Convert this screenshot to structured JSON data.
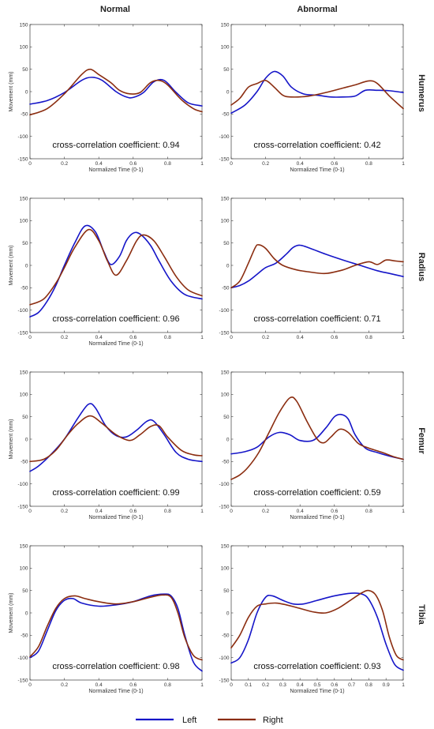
{
  "columns": [
    "Normal",
    "Abnormal"
  ],
  "rows": [
    "Humerus",
    "Radius",
    "Femur",
    "Tibia"
  ],
  "colors": {
    "left": "#1515c8",
    "right": "#8b2d10"
  },
  "legend": [
    {
      "name": "Left",
      "key": "left"
    },
    {
      "name": "Right",
      "key": "right"
    }
  ],
  "chart_data": [
    {
      "type": "line",
      "row": "Humerus",
      "column": "Normal",
      "xlabel": "Normalized Time (0-1)",
      "ylabel": "Movement (mm)",
      "xlim": [
        0,
        1
      ],
      "ylim": [
        -150,
        150
      ],
      "xticks": [
        "0",
        "0.2",
        "0.4",
        "0.6",
        "0.8",
        "1"
      ],
      "yticks": [
        "150",
        "100",
        "50",
        "0",
        "-50",
        "-100",
        "-150"
      ],
      "annotation": "cross-correlation coefficient:  0.94",
      "series": [
        {
          "name": "Left",
          "key": "left",
          "x": [
            0,
            0.1,
            0.2,
            0.3,
            0.36,
            0.42,
            0.5,
            0.56,
            0.6,
            0.66,
            0.72,
            0.78,
            0.85,
            0.92,
            1
          ],
          "y": [
            -28,
            -20,
            -2,
            25,
            32,
            25,
            0,
            -12,
            -13,
            -2,
            22,
            25,
            -2,
            -25,
            -32
          ]
        },
        {
          "name": "Right",
          "key": "right",
          "x": [
            0,
            0.1,
            0.2,
            0.3,
            0.35,
            0.4,
            0.47,
            0.52,
            0.58,
            0.64,
            0.7,
            0.75,
            0.8,
            0.88,
            0.95,
            1
          ],
          "y": [
            -52,
            -38,
            -5,
            38,
            50,
            38,
            20,
            3,
            -5,
            -2,
            20,
            25,
            15,
            -18,
            -38,
            -45
          ]
        }
      ]
    },
    {
      "type": "line",
      "row": "Humerus",
      "column": "Abnormal",
      "xlabel": "Normalized Time (0-1)",
      "ylabel": "",
      "xlim": [
        0,
        1
      ],
      "ylim": [
        -150,
        150
      ],
      "xticks": [
        "0",
        "0.2",
        "0.4",
        "0.6",
        "0.8",
        "1"
      ],
      "yticks": [
        "150",
        "100",
        "50",
        "0",
        "-50",
        "-100",
        "-150"
      ],
      "annotation": "cross-correlation coefficient:  0.42",
      "series": [
        {
          "name": "Left",
          "key": "left",
          "x": [
            0,
            0.08,
            0.15,
            0.2,
            0.25,
            0.3,
            0.35,
            0.42,
            0.5,
            0.58,
            0.65,
            0.72,
            0.78,
            0.85,
            0.92,
            1
          ],
          "y": [
            -48,
            -30,
            0,
            30,
            45,
            35,
            10,
            -5,
            -8,
            -12,
            -12,
            -10,
            3,
            3,
            2,
            -2
          ]
        },
        {
          "name": "Right",
          "key": "right",
          "x": [
            0,
            0.05,
            0.1,
            0.15,
            0.2,
            0.25,
            0.3,
            0.35,
            0.45,
            0.55,
            0.65,
            0.72,
            0.8,
            0.85,
            0.92,
            1
          ],
          "y": [
            -30,
            -15,
            10,
            18,
            25,
            10,
            -8,
            -12,
            -10,
            -2,
            8,
            15,
            24,
            18,
            -10,
            -38
          ]
        }
      ]
    },
    {
      "type": "line",
      "row": "Radius",
      "column": "Normal",
      "xlabel": "Normalized Time (0-1)",
      "ylabel": "Movement (mm)",
      "xlim": [
        0,
        1
      ],
      "ylim": [
        -150,
        150
      ],
      "xticks": [
        "0",
        "0.2",
        "0.4",
        "0.6",
        "0.8",
        "1"
      ],
      "yticks": [
        "150",
        "100",
        "50",
        "0",
        "-50",
        "-100",
        "-150"
      ],
      "annotation": "cross-correlation coefficient:  0.96",
      "series": [
        {
          "name": "Left",
          "key": "left",
          "x": [
            0,
            0.05,
            0.1,
            0.15,
            0.2,
            0.26,
            0.32,
            0.38,
            0.43,
            0.47,
            0.52,
            0.56,
            0.6,
            0.64,
            0.7,
            0.75,
            0.82,
            0.9,
            1
          ],
          "y": [
            -115,
            -105,
            -80,
            -45,
            0,
            50,
            88,
            75,
            30,
            2,
            20,
            55,
            72,
            70,
            45,
            10,
            -35,
            -65,
            -75
          ]
        },
        {
          "name": "Right",
          "key": "right",
          "x": [
            0,
            0.08,
            0.15,
            0.2,
            0.26,
            0.34,
            0.4,
            0.45,
            0.5,
            0.56,
            0.62,
            0.66,
            0.72,
            0.78,
            0.85,
            0.92,
            1
          ],
          "y": [
            -88,
            -75,
            -40,
            -5,
            40,
            80,
            55,
            10,
            -22,
            10,
            55,
            68,
            55,
            20,
            -25,
            -55,
            -68
          ]
        }
      ]
    },
    {
      "type": "line",
      "row": "Radius",
      "column": "Abnormal",
      "xlabel": "",
      "ylabel": "",
      "xlim": [
        0,
        1
      ],
      "ylim": [
        -150,
        150
      ],
      "xticks": [
        "0",
        "0.2",
        "0.4",
        "0.6",
        "0.8",
        "1"
      ],
      "yticks": [
        "150",
        "100",
        "50",
        "0",
        "-50",
        "-100",
        "-150"
      ],
      "annotation": "cross-correlation coefficient:  0.71",
      "series": [
        {
          "name": "Left",
          "key": "left",
          "x": [
            0,
            0.05,
            0.1,
            0.15,
            0.2,
            0.26,
            0.32,
            0.36,
            0.4,
            0.46,
            0.55,
            0.65,
            0.75,
            0.85,
            0.92,
            1
          ],
          "y": [
            -50,
            -45,
            -35,
            -20,
            -5,
            5,
            25,
            40,
            45,
            38,
            25,
            12,
            0,
            -12,
            -18,
            -25
          ]
        },
        {
          "name": "Right",
          "key": "right",
          "x": [
            0,
            0.05,
            0.1,
            0.14,
            0.16,
            0.2,
            0.25,
            0.3,
            0.38,
            0.46,
            0.55,
            0.65,
            0.72,
            0.8,
            0.85,
            0.9,
            0.95,
            1
          ],
          "y": [
            -50,
            -35,
            5,
            40,
            46,
            38,
            15,
            0,
            -10,
            -15,
            -18,
            -10,
            0,
            8,
            2,
            12,
            10,
            8
          ]
        }
      ]
    },
    {
      "type": "line",
      "row": "Femur",
      "column": "Normal",
      "xlabel": "Normalized Time (0-1)",
      "ylabel": "Movement (mm)",
      "xlim": [
        0,
        1
      ],
      "ylim": [
        -150,
        150
      ],
      "xticks": [
        "0",
        "0.2",
        "0.4",
        "0.6",
        "0.8",
        "1"
      ],
      "yticks": [
        "150",
        "100",
        "50",
        "0",
        "-50",
        "-100",
        "-150"
      ],
      "annotation": "cross-correlation coefficient:  0.99",
      "series": [
        {
          "name": "Left",
          "key": "left",
          "x": [
            0,
            0.05,
            0.12,
            0.2,
            0.28,
            0.34,
            0.38,
            0.44,
            0.5,
            0.56,
            0.62,
            0.68,
            0.72,
            0.78,
            0.85,
            0.92,
            1
          ],
          "y": [
            -72,
            -60,
            -35,
            0,
            48,
            78,
            70,
            30,
            8,
            5,
            20,
            40,
            40,
            10,
            -30,
            -45,
            -50
          ]
        },
        {
          "name": "Right",
          "key": "right",
          "x": [
            0,
            0.08,
            0.15,
            0.22,
            0.28,
            0.35,
            0.42,
            0.5,
            0.58,
            0.64,
            0.7,
            0.75,
            0.8,
            0.88,
            0.95,
            1
          ],
          "y": [
            -50,
            -45,
            -25,
            10,
            35,
            52,
            35,
            10,
            -3,
            10,
            28,
            30,
            5,
            -25,
            -35,
            -37
          ]
        }
      ]
    },
    {
      "type": "line",
      "row": "Femur",
      "column": "Abnormal",
      "xlabel": "Normalized Time (0-1)",
      "ylabel": "",
      "xlim": [
        0,
        1
      ],
      "ylim": [
        -150,
        150
      ],
      "xticks": [
        "0",
        "0.2",
        "0.4",
        "0.6",
        "0.8",
        "1"
      ],
      "yticks": [
        "150",
        "100",
        "50",
        "0",
        "-50",
        "-100",
        "-150"
      ],
      "annotation": "cross-correlation coefficient:  0.59",
      "series": [
        {
          "name": "Left",
          "key": "left",
          "x": [
            0,
            0.08,
            0.15,
            0.22,
            0.28,
            0.34,
            0.4,
            0.48,
            0.55,
            0.6,
            0.64,
            0.68,
            0.72,
            0.78,
            0.85,
            0.92,
            1
          ],
          "y": [
            -33,
            -28,
            -18,
            5,
            15,
            10,
            -3,
            -2,
            25,
            50,
            55,
            45,
            10,
            -20,
            -30,
            -38,
            -45
          ]
        },
        {
          "name": "Right",
          "key": "right",
          "x": [
            0,
            0.05,
            0.1,
            0.16,
            0.22,
            0.28,
            0.34,
            0.38,
            0.44,
            0.5,
            0.54,
            0.58,
            0.63,
            0.68,
            0.74,
            0.8,
            0.88,
            0.95,
            1
          ],
          "y": [
            -90,
            -80,
            -62,
            -30,
            15,
            60,
            92,
            85,
            40,
            0,
            -8,
            5,
            22,
            15,
            -10,
            -20,
            -30,
            -40,
            -45
          ]
        }
      ]
    },
    {
      "type": "line",
      "row": "Tibia",
      "column": "Normal",
      "xlabel": "Normalized Time (0-1)",
      "ylabel": "Movement (mm)",
      "xlim": [
        0,
        1
      ],
      "ylim": [
        -150,
        150
      ],
      "xticks": [
        "0",
        "0.2",
        "0.4",
        "0.6",
        "0.8",
        "1"
      ],
      "yticks": [
        "150",
        "100",
        "50",
        "0",
        "-50",
        "-100",
        "-150"
      ],
      "annotation": "cross-correlation coefficient:  0.98",
      "series": [
        {
          "name": "Left",
          "key": "left",
          "x": [
            0,
            0.05,
            0.1,
            0.15,
            0.2,
            0.25,
            0.3,
            0.4,
            0.5,
            0.6,
            0.7,
            0.78,
            0.82,
            0.86,
            0.9,
            0.95,
            1
          ],
          "y": [
            -100,
            -85,
            -40,
            5,
            28,
            32,
            22,
            15,
            18,
            25,
            38,
            42,
            38,
            10,
            -50,
            -110,
            -130
          ]
        },
        {
          "name": "Right",
          "key": "right",
          "x": [
            0,
            0.05,
            0.1,
            0.15,
            0.2,
            0.26,
            0.32,
            0.4,
            0.5,
            0.6,
            0.7,
            0.77,
            0.82,
            0.86,
            0.9,
            0.95,
            1
          ],
          "y": [
            -98,
            -75,
            -30,
            10,
            32,
            38,
            32,
            25,
            20,
            25,
            35,
            40,
            35,
            0,
            -55,
            -95,
            -105
          ]
        }
      ]
    },
    {
      "type": "line",
      "row": "Tibia",
      "column": "Abnormal",
      "xlabel": "Normalized Time (0-1)",
      "ylabel": "",
      "xlim": [
        0,
        1
      ],
      "ylim": [
        -150,
        150
      ],
      "xticks": [
        "0",
        "0.1",
        "0.2",
        "0.3",
        "0.4",
        "0.5",
        "0.6",
        "0.7",
        "0.8",
        "0.9",
        "1"
      ],
      "yticks": [
        "150",
        "100",
        "50",
        "0",
        "-50",
        "-100",
        "-150"
      ],
      "annotation": "cross-correlation coefficient:  0.93",
      "series": [
        {
          "name": "Left",
          "key": "left",
          "x": [
            0,
            0.05,
            0.1,
            0.15,
            0.2,
            0.24,
            0.3,
            0.36,
            0.42,
            0.5,
            0.6,
            0.7,
            0.76,
            0.8,
            0.85,
            0.9,
            0.95,
            1
          ],
          "y": [
            -112,
            -100,
            -60,
            0,
            35,
            38,
            28,
            20,
            20,
            28,
            38,
            44,
            42,
            30,
            -10,
            -70,
            -115,
            -128
          ]
        },
        {
          "name": "Right",
          "key": "right",
          "x": [
            0,
            0.05,
            0.1,
            0.15,
            0.2,
            0.26,
            0.32,
            0.4,
            0.48,
            0.55,
            0.62,
            0.7,
            0.76,
            0.8,
            0.84,
            0.88,
            0.92,
            0.96,
            1
          ],
          "y": [
            -78,
            -50,
            -10,
            15,
            20,
            22,
            18,
            10,
            2,
            0,
            10,
            30,
            45,
            50,
            40,
            5,
            -55,
            -95,
            -105
          ]
        }
      ]
    }
  ]
}
